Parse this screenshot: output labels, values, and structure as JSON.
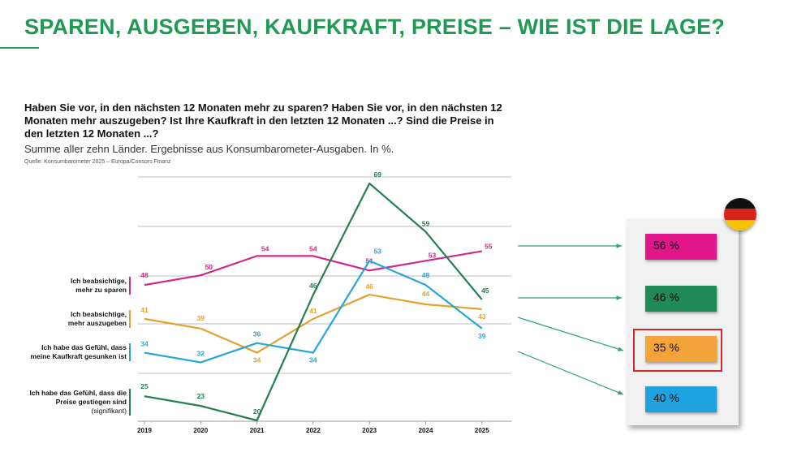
{
  "slide": {
    "title": "SPAREN, AUSGEBEN, KAUFKRAFT, PREISE – WIE IST DIE LAGE?"
  },
  "chart_data": {
    "type": "line",
    "title": "Haben Sie vor, in den nächsten 12 Monaten mehr zu sparen? Haben Sie vor, in den nächsten 12 Monaten mehr auszugeben? Ist Ihre Kaufkraft in den letzten 12 Monaten ...? Sind die Preise in den letzten 12 Monaten ...?",
    "subtitle": "Summe aller zehn Länder. Ergebnisse aus Konsumbarometer-Ausgaben. In %.",
    "source": "Quelle: Konsumbarometer 2025 – Europa/Consors Finanz",
    "x": [
      2019,
      2020,
      2021,
      2022,
      2023,
      2024,
      2025
    ],
    "x_tick_labels": [
      "2019",
      "2020",
      "2021",
      "2022",
      "2023",
      "2024",
      "2025"
    ],
    "ylim": [
      18,
      72
    ],
    "grid": "horizontal",
    "series": [
      {
        "name": "Ich beabsichtige, mehr zu sparen",
        "color": "#cc2a8a",
        "values": [
          48,
          50,
          54,
          54,
          51,
          53,
          55
        ],
        "labels": [
          "48",
          "50",
          "54",
          "54",
          "51",
          "53",
          "55"
        ]
      },
      {
        "name": "Ich beabsichtige, mehr auszugeben",
        "color": "#e3a131",
        "values": [
          41,
          39,
          34,
          41,
          46,
          44,
          43
        ],
        "labels": [
          "41",
          "39",
          "34",
          "41",
          "46",
          "44",
          "43"
        ]
      },
      {
        "name": "Ich habe das Gefühl, dass meine Kaufkraft gesunken ist",
        "color": "#27a5d8",
        "values": [
          34,
          32,
          36,
          34,
          53,
          48,
          39
        ],
        "labels": [
          "34",
          "32",
          "36",
          "34",
          "53",
          "48",
          "39"
        ]
      },
      {
        "name": "Ich habe das Gefühl, dass die Preise gestiegen sind (signifikant)",
        "color": "#237f4f",
        "values": [
          25,
          23,
          20,
          46,
          69,
          59,
          45
        ],
        "labels": [
          "25",
          "23",
          "20",
          "46",
          "69",
          "59",
          "45"
        ]
      }
    ]
  },
  "row_labels": {
    "sparen": {
      "l1": "Ich beabsichtige,",
      "l2": "mehr zu sparen"
    },
    "ausgeben": {
      "l1": "Ich beabsichtige,",
      "l2": "mehr auszugeben"
    },
    "kaufkraft": {
      "l1": "Ich habe das Gefühl, dass",
      "l2": "meine Kaufkraft gesunken ist"
    },
    "preise": {
      "l1": "Ich habe das Gefühl, dass die",
      "l2": "Preise gestiegen sind",
      "l3": "(signifikant)"
    }
  },
  "germany": {
    "flag_icon": "germany-flag-icon",
    "values": [
      {
        "label": "56 %",
        "color": "#e0168a"
      },
      {
        "label": "46 %",
        "color": "#1f8a57"
      },
      {
        "label": "35 %",
        "color": "#f2a33a"
      },
      {
        "label": "40 %",
        "color": "#1ea3e0"
      }
    ]
  }
}
